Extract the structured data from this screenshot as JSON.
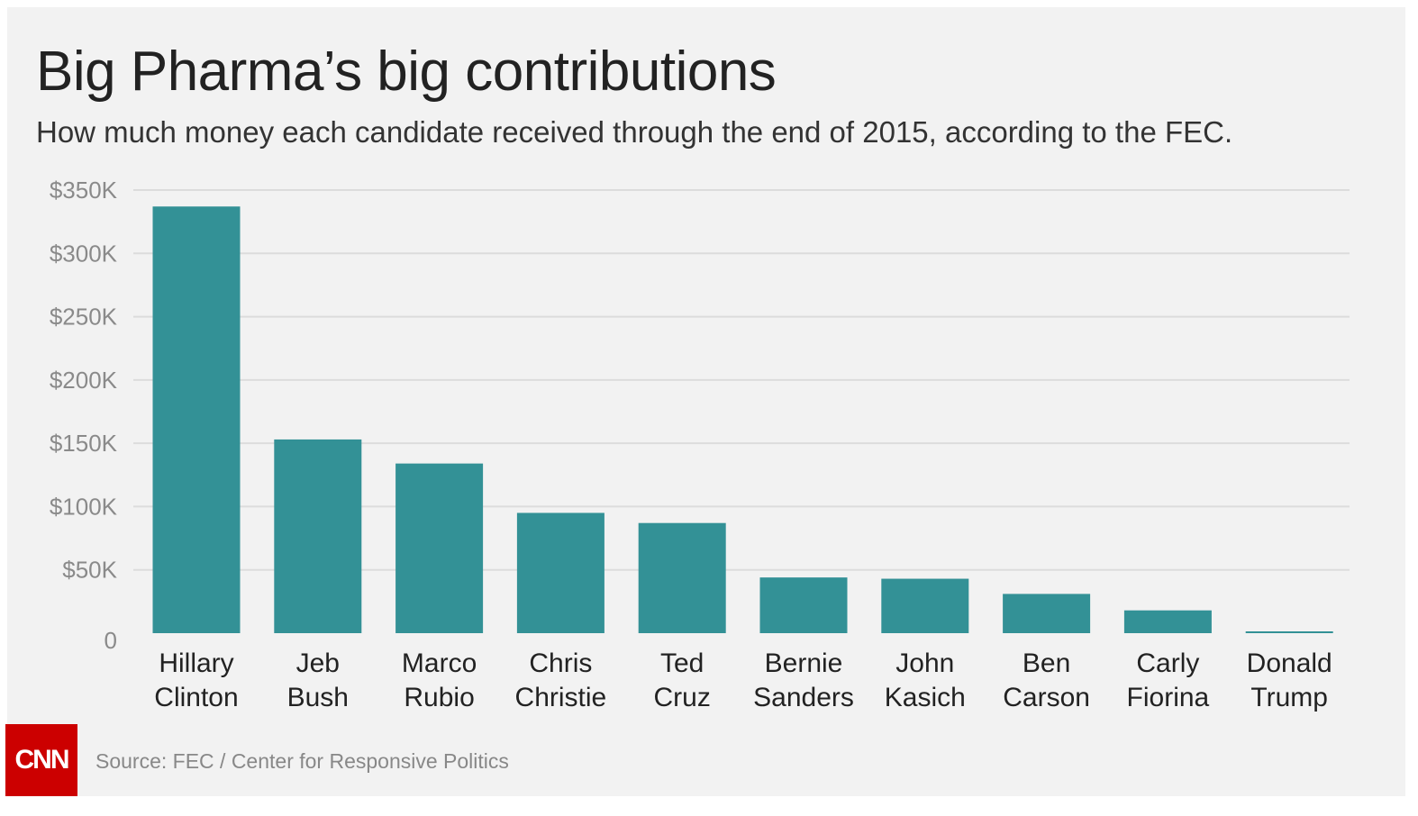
{
  "logo_text": "CNN",
  "source": "Source: FEC / Center for Responsive Politics",
  "colors": {
    "bar": "#339196",
    "grid": "#dcdcdc",
    "tick": "#8a8a8a",
    "category": "#222222"
  },
  "chart_data": {
    "type": "bar",
    "title": "Big Pharma’s big contributions",
    "subtitle": "How much money each candidate received through the end of 2015, according to the FEC.",
    "xlabel": "",
    "ylabel": "",
    "ylim": [
      0,
      350000
    ],
    "grid": true,
    "categories": [
      [
        "Hillary",
        "Clinton"
      ],
      [
        "Jeb",
        "Bush"
      ],
      [
        "Marco",
        "Rubio"
      ],
      [
        "Chris",
        "Christie"
      ],
      [
        "Ted",
        "Cruz"
      ],
      [
        "Bernie",
        "Sanders"
      ],
      [
        "John",
        "Kasich"
      ],
      [
        "Ben",
        "Carson"
      ],
      [
        "Carly",
        "Fiorina"
      ],
      [
        "Donald",
        "Trump"
      ]
    ],
    "values": [
      337000,
      153000,
      134000,
      95000,
      87000,
      44000,
      43000,
      31000,
      18000,
      1000
    ],
    "yticks": [
      {
        "value": 0,
        "label": "0"
      },
      {
        "value": 50000,
        "label": "$50K"
      },
      {
        "value": 100000,
        "label": "$100K"
      },
      {
        "value": 150000,
        "label": "$150K"
      },
      {
        "value": 200000,
        "label": "$200K"
      },
      {
        "value": 250000,
        "label": "$250K"
      },
      {
        "value": 300000,
        "label": "$300K"
      },
      {
        "value": 350000,
        "label": "$350K"
      }
    ]
  }
}
